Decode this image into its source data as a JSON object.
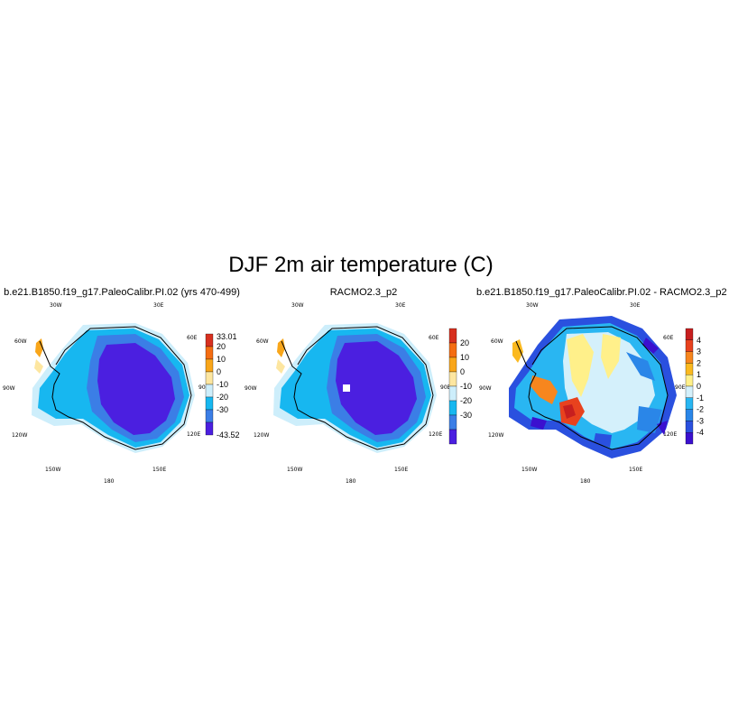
{
  "figure": {
    "title": "DJF 2m air temperature (C)"
  },
  "lon_labels": [
    "30W",
    "30E",
    "60W",
    "60E",
    "90W",
    "90E",
    "120W",
    "120E",
    "150W",
    "150E",
    "180"
  ],
  "panels": [
    {
      "title": "b.e21.B1850.f19_g17.PaleoCalibr.PI.02 (yrs 470-499)",
      "colorbar": {
        "labels": [
          "33.01",
          "20",
          "10",
          "0",
          "-10",
          "-20",
          "-30",
          "-43.52"
        ],
        "colors": [
          "#d7301f",
          "#f46d12",
          "#f9a61a",
          "#fde6a0",
          "#cdeefb",
          "#17b7f0",
          "#3b7ee6",
          "#4b1fe0"
        ]
      }
    },
    {
      "title": "RACMO2.3_p2",
      "colorbar": {
        "labels": [
          "20",
          "10",
          "0",
          "-10",
          "-20",
          "-30"
        ],
        "colors": [
          "#d7301f",
          "#f46d12",
          "#f9a61a",
          "#fde6a0",
          "#cdeefb",
          "#17b7f0",
          "#3b7ee6",
          "#4b1fe0"
        ]
      }
    },
    {
      "title": "b.e21.B1850.f19_g17.PaleoCalibr.PI.02 - RACMO2.3_p2",
      "colorbar": {
        "labels": [
          "4",
          "3",
          "2",
          "1",
          "0",
          "-1",
          "-2",
          "-3",
          "-4"
        ],
        "colors": [
          "#c71f1f",
          "#e8421e",
          "#f7861e",
          "#fbb91f",
          "#fff08a",
          "#d4f0fb",
          "#29b6f2",
          "#2a86e8",
          "#2a50df",
          "#3b10cf"
        ]
      }
    }
  ]
}
